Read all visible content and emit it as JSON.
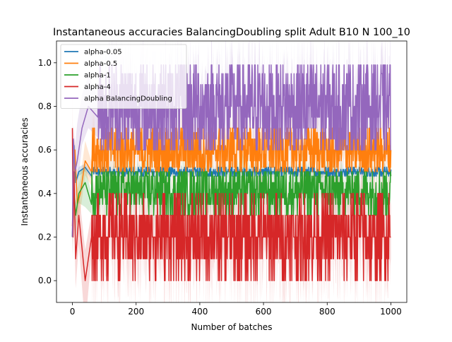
{
  "chart_data": {
    "type": "line",
    "title": "Instantaneous accuracies BalancingDoubling split Adult B10 N 100_10",
    "xlabel": "Number of batches",
    "ylabel": "Instantaneous accuracies",
    "xlim": [
      -50,
      1050
    ],
    "ylim": [
      -0.1,
      1.1
    ],
    "xticks": [
      0,
      200,
      400,
      600,
      800,
      1000
    ],
    "yticks": [
      0.0,
      0.2,
      0.4,
      0.6,
      0.8,
      1.0
    ],
    "xtick_labels": [
      "0",
      "200",
      "400",
      "600",
      "800",
      "1000"
    ],
    "ytick_labels": [
      "0.0",
      "0.2",
      "0.4",
      "0.6",
      "0.8",
      "1.0"
    ],
    "grid": false,
    "legend_position": "top-left",
    "n_points": 1000,
    "series": [
      {
        "name": "alpha-0.05",
        "color": "#1f77b4",
        "mean": 0.5,
        "band": 0.02,
        "levels": [
          0.48,
          0.49,
          0.5,
          0.5,
          0.5,
          0.51,
          0.52
        ],
        "start_points": [
          [
            0,
            0.2
          ],
          [
            2,
            0.4
          ],
          [
            5,
            0.62
          ],
          [
            10,
            0.45
          ],
          [
            20,
            0.5
          ],
          [
            40,
            0.52
          ],
          [
            60,
            0.48
          ]
        ]
      },
      {
        "name": "alpha-0.5",
        "color": "#ff7f0e",
        "mean": 0.6,
        "band": 0.08,
        "levels": [
          0.5,
          0.52,
          0.55,
          0.58,
          0.6,
          0.62,
          0.65,
          0.68,
          0.7
        ],
        "start_points": [
          [
            0,
            0.25
          ],
          [
            3,
            0.45
          ],
          [
            8,
            0.6
          ],
          [
            15,
            0.35
          ],
          [
            25,
            0.4
          ],
          [
            40,
            0.55
          ],
          [
            60,
            0.5
          ]
        ]
      },
      {
        "name": "alpha-1",
        "color": "#2ca02c",
        "mean": 0.42,
        "band": 0.08,
        "levels": [
          0.3,
          0.35,
          0.38,
          0.4,
          0.42,
          0.45,
          0.48,
          0.5
        ],
        "start_points": [
          [
            0,
            0.2
          ],
          [
            4,
            0.45
          ],
          [
            10,
            0.3
          ],
          [
            20,
            0.4
          ],
          [
            40,
            0.45
          ],
          [
            60,
            0.35
          ]
        ]
      },
      {
        "name": "alpha-4",
        "color": "#d62728",
        "mean": 0.22,
        "band": 0.15,
        "levels": [
          0.0,
          0.1,
          0.1,
          0.2,
          0.2,
          0.2,
          0.3,
          0.3,
          0.3,
          0.4
        ],
        "start_points": [
          [
            0,
            0.7
          ],
          [
            2,
            0.2
          ],
          [
            5,
            0.5
          ],
          [
            10,
            0.1
          ],
          [
            20,
            0.3
          ],
          [
            40,
            0.0
          ],
          [
            60,
            0.2
          ]
        ]
      },
      {
        "name": "alpha BalancingDoubling",
        "color": "#9467bd",
        "mean": 0.8,
        "band": 0.12,
        "levels": [
          0.6,
          0.65,
          0.7,
          0.75,
          0.8,
          0.85,
          0.9,
          0.95,
          0.99
        ],
        "start_points": [
          [
            0,
            0.2
          ],
          [
            3,
            0.65
          ],
          [
            8,
            0.5
          ],
          [
            15,
            0.55
          ],
          [
            30,
            0.7
          ],
          [
            50,
            0.8
          ],
          [
            80,
            0.75
          ]
        ]
      }
    ]
  }
}
